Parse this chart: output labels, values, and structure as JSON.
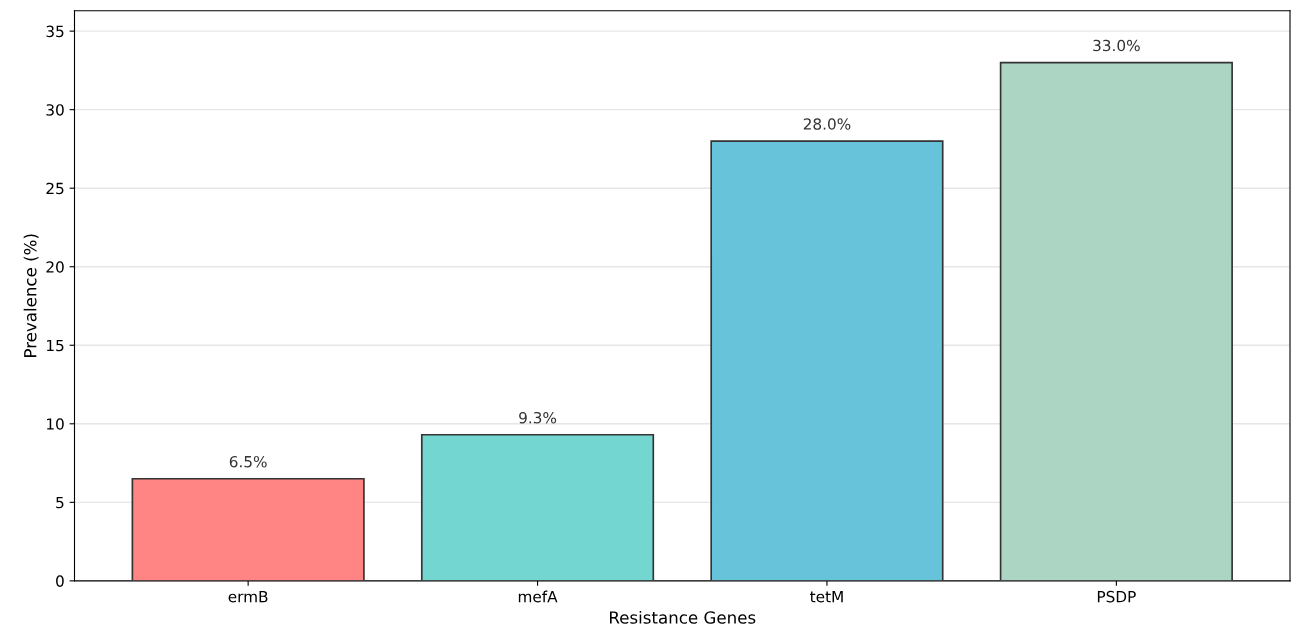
{
  "chart_data": {
    "type": "bar",
    "xlabel": "Resistance Genes",
    "ylabel": "Prevalence (%)",
    "categories": [
      "ermB",
      "mefA",
      "tetM",
      "PSDP"
    ],
    "values": [
      6.5,
      9.3,
      28.0,
      33.0
    ],
    "colors": [
      "#ff8585",
      "#73d6d1",
      "#67c3da",
      "#acd6c3"
    ],
    "value_labels": [
      "6.5%",
      "9.3%",
      "28.0%",
      "33.0%"
    ],
    "ylim": [
      0,
      36.3
    ],
    "yticks": [
      0,
      5,
      10,
      15,
      20,
      25,
      30,
      35
    ],
    "grid": "y"
  }
}
